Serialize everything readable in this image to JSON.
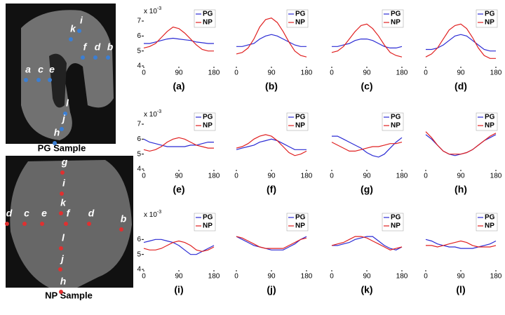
{
  "images": [
    {
      "caption": "PG Sample",
      "labels": [
        "k",
        "i",
        "f",
        "d",
        "b",
        "a",
        "c",
        "e",
        "l",
        "j",
        "h"
      ]
    },
    {
      "caption": "NP Sample",
      "labels": [
        "g",
        "i",
        "k",
        "d",
        "c",
        "e",
        "f",
        "d",
        "b",
        "l",
        "j",
        "h"
      ]
    }
  ],
  "chart_data": [
    {
      "type": "line",
      "title": "(a)",
      "annotation": "x 10",
      "annotation_exponent": "-3",
      "x": [
        0,
        15,
        30,
        45,
        60,
        75,
        90,
        105,
        120,
        135,
        150,
        165,
        180
      ],
      "xlim": [
        0,
        180
      ],
      "xticks": [
        0,
        90,
        180
      ],
      "ylim": [
        4,
        7
      ],
      "yticks": [
        4,
        5,
        6,
        7
      ],
      "legend": "upper right",
      "series": [
        {
          "name": "PG",
          "color": "#2b2bd4",
          "values": [
            5.5,
            5.5,
            5.6,
            5.7,
            5.8,
            5.85,
            5.8,
            5.75,
            5.7,
            5.6,
            5.55,
            5.5,
            5.5
          ]
        },
        {
          "name": "NP",
          "color": "#e02020",
          "values": [
            5.2,
            5.3,
            5.5,
            5.9,
            6.3,
            6.6,
            6.5,
            6.2,
            5.8,
            5.4,
            5.1,
            5.0,
            5.0
          ]
        }
      ]
    },
    {
      "type": "line",
      "title": "(b)",
      "x": [
        0,
        15,
        30,
        45,
        60,
        75,
        90,
        105,
        120,
        135,
        150,
        165,
        180
      ],
      "xlim": [
        0,
        180
      ],
      "xticks": [
        0,
        90,
        180
      ],
      "ylim": [
        4,
        7
      ],
      "legend": "upper right",
      "series": [
        {
          "name": "PG",
          "color": "#2b2bd4",
          "values": [
            5.3,
            5.3,
            5.4,
            5.5,
            5.8,
            6.0,
            6.1,
            6.0,
            5.8,
            5.6,
            5.4,
            5.3,
            5.3
          ]
        },
        {
          "name": "NP",
          "color": "#e02020",
          "values": [
            4.8,
            4.9,
            5.2,
            5.8,
            6.6,
            7.1,
            7.2,
            6.9,
            6.3,
            5.6,
            5.0,
            4.7,
            4.6
          ]
        }
      ]
    },
    {
      "type": "line",
      "title": "(c)",
      "x": [
        0,
        15,
        30,
        45,
        60,
        75,
        90,
        105,
        120,
        135,
        150,
        165,
        180
      ],
      "xlim": [
        0,
        180
      ],
      "xticks": [
        0,
        90,
        180
      ],
      "ylim": [
        4,
        7
      ],
      "legend": "upper right",
      "series": [
        {
          "name": "PG",
          "color": "#2b2bd4",
          "values": [
            5.3,
            5.3,
            5.4,
            5.5,
            5.7,
            5.8,
            5.8,
            5.7,
            5.5,
            5.3,
            5.2,
            5.2,
            5.3
          ]
        },
        {
          "name": "NP",
          "color": "#e02020",
          "values": [
            4.9,
            5.0,
            5.3,
            5.8,
            6.3,
            6.7,
            6.8,
            6.5,
            6.0,
            5.4,
            4.9,
            4.7,
            4.6
          ]
        }
      ]
    },
    {
      "type": "line",
      "title": "(d)",
      "x": [
        0,
        15,
        30,
        45,
        60,
        75,
        90,
        105,
        120,
        135,
        150,
        165,
        180
      ],
      "xlim": [
        0,
        180
      ],
      "xticks": [
        0,
        90,
        180
      ],
      "ylim": [
        4,
        7
      ],
      "legend": "upper right",
      "series": [
        {
          "name": "PG",
          "color": "#2b2bd4",
          "values": [
            5.1,
            5.1,
            5.2,
            5.4,
            5.7,
            6.0,
            6.1,
            6.0,
            5.7,
            5.4,
            5.1,
            5.0,
            5.0
          ]
        },
        {
          "name": "NP",
          "color": "#e02020",
          "values": [
            4.6,
            4.8,
            5.2,
            5.8,
            6.4,
            6.7,
            6.8,
            6.5,
            5.9,
            5.2,
            4.7,
            4.5,
            4.5
          ]
        }
      ]
    },
    {
      "type": "line",
      "title": "(e)",
      "annotation": "x 10",
      "annotation_exponent": "-3",
      "x": [
        0,
        15,
        30,
        45,
        60,
        75,
        90,
        105,
        120,
        135,
        150,
        165,
        180
      ],
      "xlim": [
        0,
        180
      ],
      "xticks": [
        0,
        90,
        180
      ],
      "ylim": [
        4,
        7
      ],
      "yticks": [
        4,
        5,
        6,
        7
      ],
      "legend": "upper right",
      "series": [
        {
          "name": "PG",
          "color": "#2b2bd4",
          "values": [
            6.0,
            5.8,
            5.7,
            5.6,
            5.5,
            5.5,
            5.5,
            5.5,
            5.6,
            5.6,
            5.7,
            5.8,
            5.8
          ]
        },
        {
          "name": "NP",
          "color": "#e02020",
          "values": [
            5.3,
            5.2,
            5.3,
            5.5,
            5.8,
            6.0,
            6.1,
            6.0,
            5.8,
            5.6,
            5.5,
            5.4,
            5.4
          ]
        }
      ]
    },
    {
      "type": "line",
      "title": "(f)",
      "x": [
        0,
        15,
        30,
        45,
        60,
        75,
        90,
        105,
        120,
        135,
        150,
        165,
        180
      ],
      "xlim": [
        0,
        180
      ],
      "xticks": [
        0,
        90,
        180
      ],
      "ylim": [
        4,
        7
      ],
      "legend": "upper right",
      "series": [
        {
          "name": "PG",
          "color": "#2b2bd4",
          "values": [
            5.3,
            5.4,
            5.5,
            5.6,
            5.8,
            5.9,
            6.0,
            5.9,
            5.7,
            5.5,
            5.3,
            5.3,
            5.3
          ]
        },
        {
          "name": "NP",
          "color": "#e02020",
          "values": [
            5.4,
            5.5,
            5.7,
            6.0,
            6.2,
            6.3,
            6.2,
            5.9,
            5.5,
            5.1,
            4.9,
            5.0,
            5.2
          ]
        }
      ]
    },
    {
      "type": "line",
      "title": "(g)",
      "x": [
        0,
        15,
        30,
        45,
        60,
        75,
        90,
        105,
        120,
        135,
        150,
        165,
        180
      ],
      "xlim": [
        0,
        180
      ],
      "xticks": [
        0,
        90,
        180
      ],
      "ylim": [
        4,
        7
      ],
      "legend": "upper right",
      "series": [
        {
          "name": "PG",
          "color": "#2b2bd4",
          "values": [
            6.2,
            6.2,
            6.0,
            5.8,
            5.6,
            5.4,
            5.1,
            4.9,
            4.8,
            5.0,
            5.4,
            5.8,
            6.1
          ]
        },
        {
          "name": "NP",
          "color": "#e02020",
          "values": [
            5.8,
            5.6,
            5.4,
            5.2,
            5.2,
            5.3,
            5.4,
            5.5,
            5.5,
            5.6,
            5.7,
            5.7,
            5.8
          ]
        }
      ]
    },
    {
      "type": "line",
      "title": "(h)",
      "x": [
        0,
        15,
        30,
        45,
        60,
        75,
        90,
        105,
        120,
        135,
        150,
        165,
        180
      ],
      "xlim": [
        0,
        180
      ],
      "xticks": [
        0,
        90,
        180
      ],
      "ylim": [
        4,
        7
      ],
      "legend": "upper right",
      "series": [
        {
          "name": "PG",
          "color": "#2b2bd4",
          "values": [
            6.3,
            6.0,
            5.6,
            5.2,
            5.0,
            4.9,
            5.0,
            5.1,
            5.3,
            5.6,
            5.9,
            6.1,
            6.3
          ]
        },
        {
          "name": "NP",
          "color": "#e02020",
          "values": [
            6.5,
            6.1,
            5.6,
            5.2,
            5.0,
            5.0,
            5.0,
            5.1,
            5.3,
            5.6,
            5.9,
            6.2,
            6.4
          ]
        }
      ]
    },
    {
      "type": "line",
      "title": "(i)",
      "annotation": "x 10",
      "annotation_exponent": "-3",
      "x": [
        0,
        15,
        30,
        45,
        60,
        75,
        90,
        105,
        120,
        135,
        150,
        165,
        180
      ],
      "xlim": [
        0,
        180
      ],
      "xticks": [
        0,
        90,
        180
      ],
      "ylim": [
        4,
        7
      ],
      "yticks": [
        4,
        5,
        6
      ],
      "legend": "upper right",
      "series": [
        {
          "name": "PG",
          "color": "#2b2bd4",
          "values": [
            5.8,
            5.9,
            6.0,
            6.0,
            5.9,
            5.8,
            5.6,
            5.3,
            5.0,
            5.0,
            5.2,
            5.4,
            5.6
          ]
        },
        {
          "name": "NP",
          "color": "#e02020",
          "values": [
            5.4,
            5.3,
            5.3,
            5.4,
            5.6,
            5.8,
            5.9,
            5.8,
            5.6,
            5.3,
            5.2,
            5.3,
            5.5
          ]
        }
      ]
    },
    {
      "type": "line",
      "title": "(j)",
      "x": [
        0,
        15,
        30,
        45,
        60,
        75,
        90,
        105,
        120,
        135,
        150,
        165,
        180
      ],
      "xlim": [
        0,
        180
      ],
      "xticks": [
        0,
        90,
        180
      ],
      "ylim": [
        4,
        7
      ],
      "legend": "upper right",
      "series": [
        {
          "name": "PG",
          "color": "#2b2bd4",
          "values": [
            6.2,
            6.0,
            5.8,
            5.6,
            5.5,
            5.4,
            5.3,
            5.3,
            5.3,
            5.5,
            5.7,
            6.0,
            6.2
          ]
        },
        {
          "name": "NP",
          "color": "#e02020",
          "values": [
            6.2,
            6.1,
            5.9,
            5.7,
            5.5,
            5.4,
            5.4,
            5.4,
            5.4,
            5.6,
            5.8,
            6.0,
            6.1
          ]
        }
      ]
    },
    {
      "type": "line",
      "title": "(k)",
      "x": [
        0,
        15,
        30,
        45,
        60,
        75,
        90,
        105,
        120,
        135,
        150,
        165,
        180
      ],
      "xlim": [
        0,
        180
      ],
      "xticks": [
        0,
        90,
        180
      ],
      "ylim": [
        4,
        7
      ],
      "legend": "upper right",
      "series": [
        {
          "name": "PG",
          "color": "#2b2bd4",
          "values": [
            5.6,
            5.6,
            5.7,
            5.8,
            6.0,
            6.1,
            6.2,
            6.2,
            5.9,
            5.6,
            5.4,
            5.3,
            5.5
          ]
        },
        {
          "name": "NP",
          "color": "#e02020",
          "values": [
            5.6,
            5.7,
            5.8,
            6.0,
            6.2,
            6.2,
            6.1,
            5.9,
            5.7,
            5.5,
            5.3,
            5.4,
            5.5
          ]
        }
      ]
    },
    {
      "type": "line",
      "title": "(l)",
      "x": [
        0,
        15,
        30,
        45,
        60,
        75,
        90,
        105,
        120,
        135,
        150,
        165,
        180
      ],
      "xlim": [
        0,
        180
      ],
      "xticks": [
        0,
        90,
        180
      ],
      "ylim": [
        4,
        7
      ],
      "legend": "upper right",
      "series": [
        {
          "name": "PG",
          "color": "#2b2bd4",
          "values": [
            6.0,
            5.9,
            5.7,
            5.6,
            5.5,
            5.5,
            5.4,
            5.4,
            5.4,
            5.5,
            5.6,
            5.7,
            5.9
          ]
        },
        {
          "name": "NP",
          "color": "#e02020",
          "values": [
            5.6,
            5.6,
            5.5,
            5.6,
            5.7,
            5.8,
            5.9,
            5.8,
            5.6,
            5.5,
            5.5,
            5.5,
            5.6
          ]
        }
      ]
    }
  ]
}
